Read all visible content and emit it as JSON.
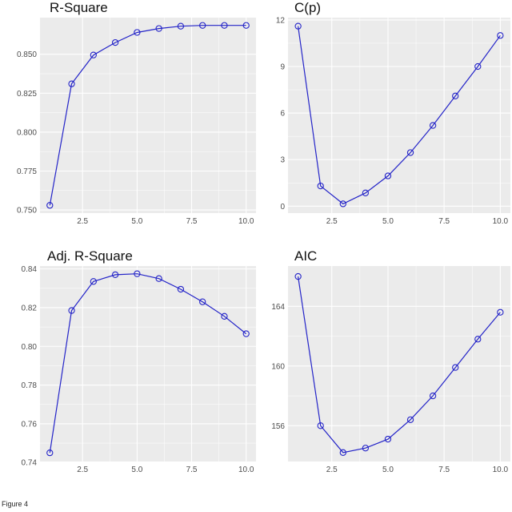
{
  "figure_caption": "Figure 4",
  "colors": {
    "panel_bg": "#ebebeb",
    "grid": "#ffffff",
    "line": "#2323c8",
    "marker": "#2323c8"
  },
  "chart_data": [
    {
      "type": "line",
      "title": "R-Square",
      "x": [
        1,
        2,
        3,
        4,
        5,
        6,
        7,
        8,
        9,
        10
      ],
      "y": [
        0.753,
        0.831,
        0.8495,
        0.8575,
        0.864,
        0.8665,
        0.868,
        0.8685,
        0.8685,
        0.8685
      ],
      "xlim": [
        0.55,
        10.45
      ],
      "ylim": [
        0.748,
        0.8735
      ],
      "xticks": [
        2.5,
        5.0,
        7.5,
        10.0
      ],
      "xtick_labels": [
        "2.5",
        "5.0",
        "7.5",
        "10.0"
      ],
      "yticks": [
        0.75,
        0.775,
        0.8,
        0.825,
        0.85
      ],
      "ytick_labels": [
        "0.750",
        "0.775",
        "0.800",
        "0.825",
        "0.850"
      ],
      "grid": true,
      "markers": "open-circle"
    },
    {
      "type": "line",
      "title": "C(p)",
      "x": [
        1,
        2,
        3,
        4,
        5,
        6,
        7,
        8,
        9,
        10
      ],
      "y": [
        11.6,
        1.3,
        0.15,
        0.85,
        1.95,
        3.45,
        5.2,
        7.1,
        9.0,
        11.0
      ],
      "xlim": [
        0.55,
        10.45
      ],
      "ylim": [
        -0.45,
        12.15
      ],
      "xticks": [
        2.5,
        5.0,
        7.5,
        10.0
      ],
      "xtick_labels": [
        "2.5",
        "5.0",
        "7.5",
        "10.0"
      ],
      "yticks": [
        0,
        3,
        6,
        9,
        12
      ],
      "ytick_labels": [
        "0",
        "3",
        "6",
        "9",
        "12"
      ],
      "grid": true,
      "markers": "open-circle"
    },
    {
      "type": "line",
      "title": "Adj. R-Square",
      "x": [
        1,
        2,
        3,
        4,
        5,
        6,
        7,
        8,
        9,
        10
      ],
      "y": [
        0.745,
        0.8185,
        0.8335,
        0.837,
        0.8375,
        0.835,
        0.8295,
        0.823,
        0.8155,
        0.8065
      ],
      "xlim": [
        0.55,
        10.45
      ],
      "ylim": [
        0.7405,
        0.8415
      ],
      "xticks": [
        2.5,
        5.0,
        7.5,
        10.0
      ],
      "xtick_labels": [
        "2.5",
        "5.0",
        "7.5",
        "10.0"
      ],
      "yticks": [
        0.74,
        0.76,
        0.78,
        0.8,
        0.82,
        0.84
      ],
      "ytick_labels": [
        "0.74",
        "0.76",
        "0.78",
        "0.80",
        "0.82",
        "0.84"
      ],
      "grid": true,
      "markers": "open-circle"
    },
    {
      "type": "line",
      "title": "AIC",
      "x": [
        1,
        2,
        3,
        4,
        5,
        6,
        7,
        8,
        9,
        10
      ],
      "y": [
        166.0,
        156.0,
        154.2,
        154.5,
        155.1,
        156.4,
        158.0,
        159.9,
        161.8,
        163.6
      ],
      "xlim": [
        0.55,
        10.45
      ],
      "ylim": [
        153.6,
        166.7
      ],
      "xticks": [
        2.5,
        5.0,
        7.5,
        10.0
      ],
      "xtick_labels": [
        "2.5",
        "5.0",
        "7.5",
        "10.0"
      ],
      "yticks": [
        156,
        160,
        164
      ],
      "ytick_labels": [
        "156",
        "160",
        "164"
      ],
      "grid": true,
      "markers": "open-circle"
    }
  ]
}
